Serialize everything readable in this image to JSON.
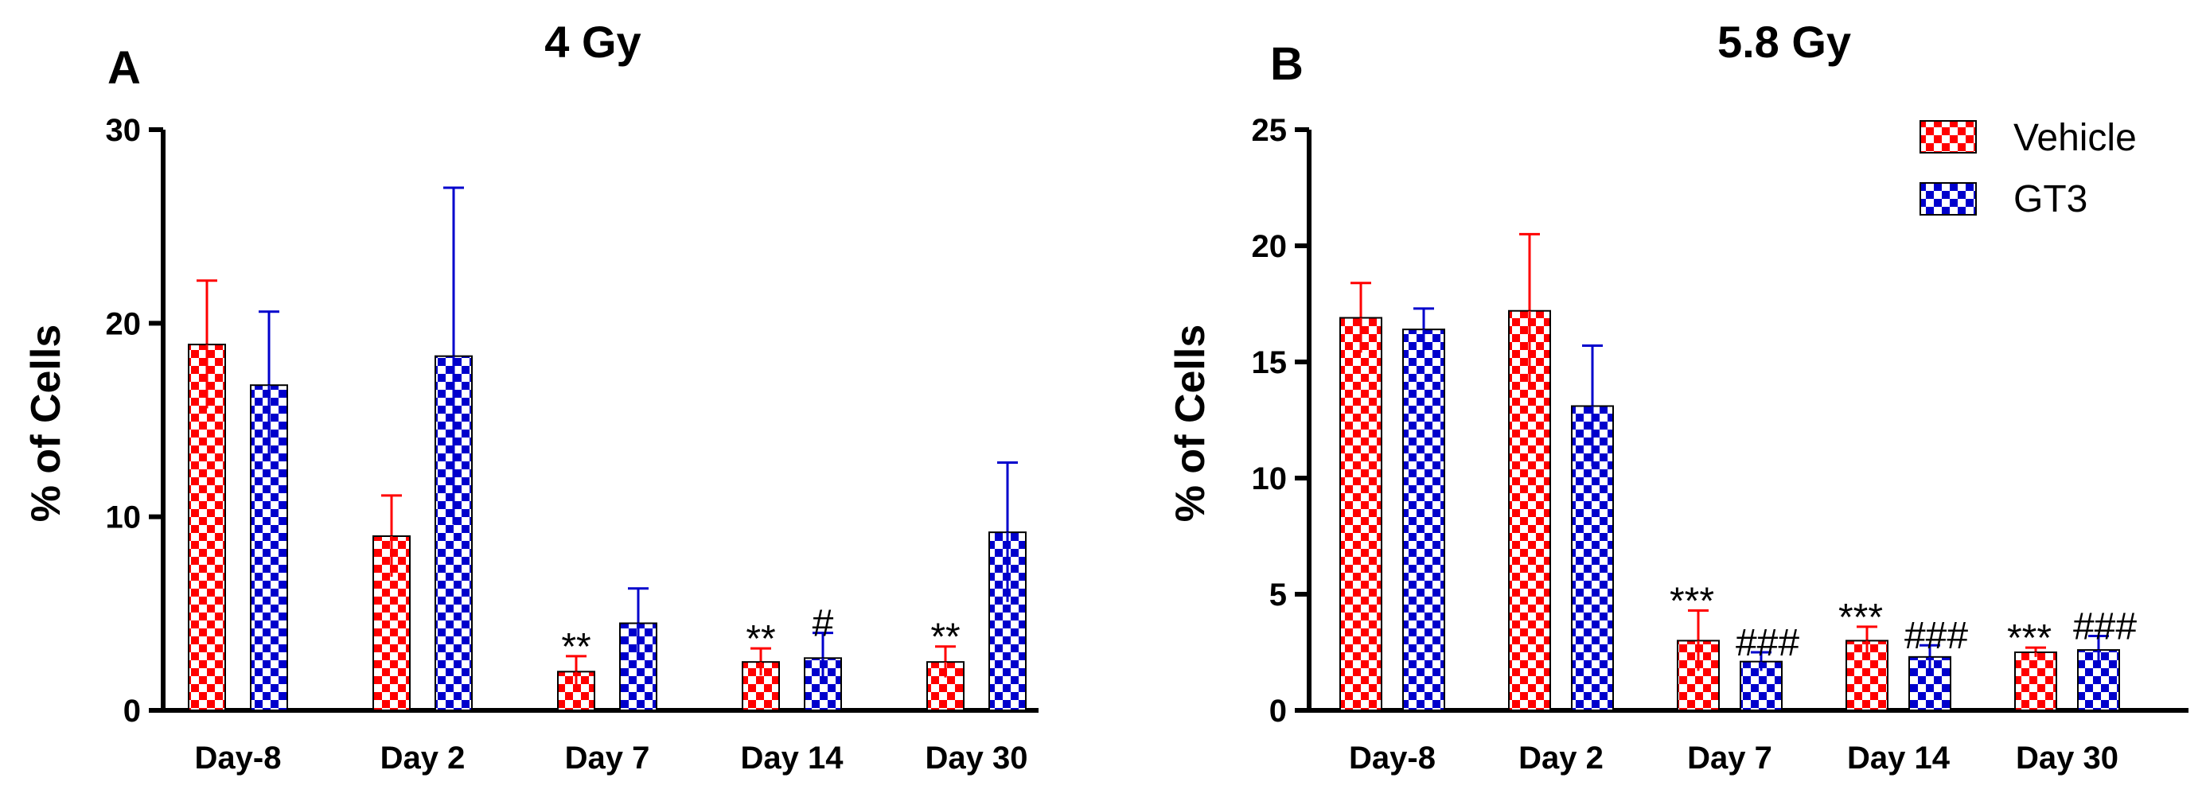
{
  "colors": {
    "vehicle": "#ff0000",
    "gt3": "#0000cc",
    "axis": "#000000"
  },
  "legend": [
    {
      "name": "Vehicle",
      "color": "#ff0000"
    },
    {
      "name": "GT3",
      "color": "#0000cc"
    }
  ],
  "chart_data": [
    {
      "panel": "A",
      "type": "bar",
      "title": "4 Gy",
      "ylabel": "% of Cells",
      "xlabel": "",
      "ylim": [
        0,
        30
      ],
      "yticks": [
        0,
        10,
        20,
        30
      ],
      "categories": [
        "Day-8",
        "Day 2",
        "Day 7",
        "Day 14",
        "Day 30"
      ],
      "series": [
        {
          "name": "Vehicle",
          "values": [
            18.9,
            9.0,
            2.0,
            2.5,
            2.5
          ],
          "errors": [
            3.3,
            2.1,
            0.8,
            0.7,
            0.8
          ]
        },
        {
          "name": "GT3",
          "values": [
            16.8,
            18.3,
            4.5,
            2.7,
            9.2
          ],
          "errors": [
            3.8,
            8.7,
            1.8,
            1.3,
            3.6
          ]
        }
      ],
      "annotations": [
        {
          "category": "Day 7",
          "series": "Vehicle",
          "text": "**"
        },
        {
          "category": "Day 14",
          "series": "Vehicle",
          "text": "**"
        },
        {
          "category": "Day 14",
          "series": "GT3",
          "text": "#"
        },
        {
          "category": "Day 30",
          "series": "Vehicle",
          "text": "**"
        }
      ]
    },
    {
      "panel": "B",
      "type": "bar",
      "title": "5.8 Gy",
      "ylabel": "% of Cells",
      "xlabel": "",
      "ylim": [
        0,
        25
      ],
      "yticks": [
        0,
        5,
        10,
        15,
        20,
        25
      ],
      "categories": [
        "Day-8",
        "Day 2",
        "Day 7",
        "Day 14",
        "Day 30"
      ],
      "legend_position": "top-right",
      "series": [
        {
          "name": "Vehicle",
          "values": [
            16.9,
            17.2,
            3.0,
            3.0,
            2.5
          ],
          "errors": [
            1.5,
            3.3,
            1.3,
            0.6,
            0.2
          ]
        },
        {
          "name": "GT3",
          "values": [
            16.4,
            13.1,
            2.1,
            2.3,
            2.6
          ],
          "errors": [
            0.9,
            2.6,
            0.4,
            0.5,
            0.6
          ]
        }
      ],
      "annotations": [
        {
          "category": "Day 7",
          "series": "Vehicle",
          "text": "***"
        },
        {
          "category": "Day 7",
          "series": "GT3",
          "text": "###"
        },
        {
          "category": "Day 14",
          "series": "Vehicle",
          "text": "***"
        },
        {
          "category": "Day 14",
          "series": "GT3",
          "text": "###"
        },
        {
          "category": "Day 30",
          "series": "Vehicle",
          "text": "***"
        },
        {
          "category": "Day 30",
          "series": "GT3",
          "text": "###"
        }
      ]
    }
  ]
}
